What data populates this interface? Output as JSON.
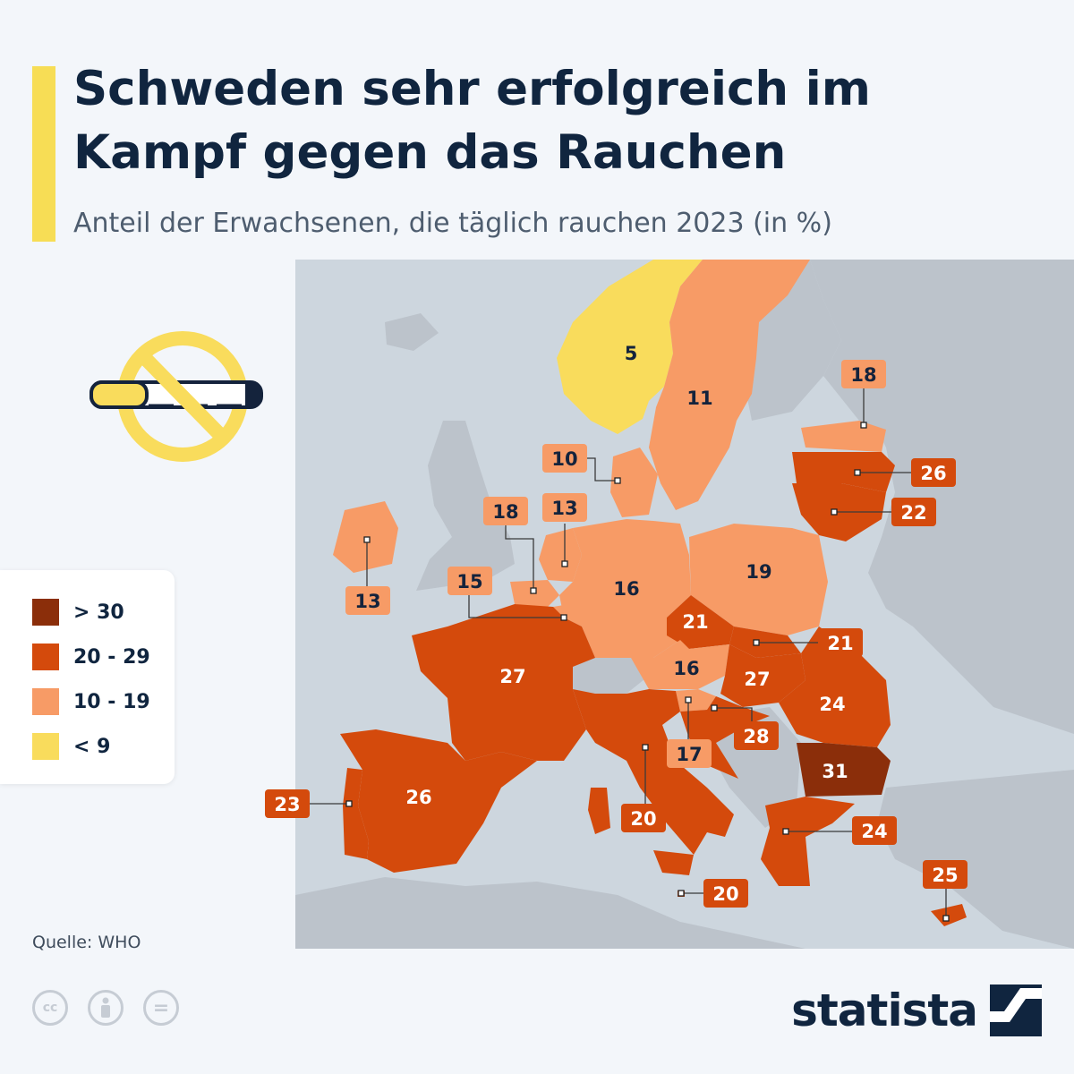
{
  "header": {
    "title": "Schweden sehr erfolgreich im Kampf gegen das Rauchen",
    "subtitle": "Anteil der Erwachsenen, die täglich rauchen 2023 (in %)"
  },
  "colors": {
    "background": "#f3f6fa",
    "sea": "#cdd6de",
    "non_data_land": "#bcc3cb",
    "accent": "#f7dd55",
    "over_30": "#8b2e0a",
    "range_20_29": "#d44a0c",
    "range_10_19": "#f79b66",
    "under_9": "#f9dc5c",
    "text_dark": "#14233c"
  },
  "icons": {
    "no_smoking": "no-smoking-icon",
    "license": [
      "cc-icon",
      "person-icon",
      "equals-icon"
    ],
    "brand_mark": "statista-logo-icon"
  },
  "legend": {
    "items": [
      {
        "label": "> 30",
        "color": "#8b2e0a"
      },
      {
        "label": "20 - 29",
        "color": "#d44a0c"
      },
      {
        "label": "10 - 19",
        "color": "#f79b66"
      },
      {
        "label": "< 9",
        "color": "#f9dc5c"
      }
    ]
  },
  "map_data": {
    "countries": {
      "norway": {
        "value": "5"
      },
      "sweden": {
        "value": "11"
      },
      "estonia": {
        "value": "18"
      },
      "latvia": {
        "value": "26"
      },
      "lithuania": {
        "value": "22"
      },
      "denmark": {
        "value": "10"
      },
      "ireland": {
        "value": "13"
      },
      "netherlands": {
        "value": "13"
      },
      "belgium": {
        "value": "18"
      },
      "luxembourg": {
        "value": "15"
      },
      "germany": {
        "value": "16"
      },
      "poland": {
        "value": "19"
      },
      "czechia": {
        "value": "21"
      },
      "slovakia": {
        "value": "21"
      },
      "austria": {
        "value": "16"
      },
      "hungary": {
        "value": "27"
      },
      "france": {
        "value": "27"
      },
      "romania": {
        "value": "24"
      },
      "slovenia": {
        "value": "17"
      },
      "croatia": {
        "value": "28"
      },
      "bulgaria": {
        "value": "31"
      },
      "portugal": {
        "value": "23"
      },
      "spain": {
        "value": "26"
      },
      "italy": {
        "value": "20"
      },
      "greece": {
        "value": "24"
      },
      "malta": {
        "value": "20"
      },
      "cyprus": {
        "value": "25"
      }
    }
  },
  "footer": {
    "source": "Quelle: WHO",
    "license_glyphs": [
      "cc",
      "",
      "="
    ],
    "brand": "statista"
  }
}
